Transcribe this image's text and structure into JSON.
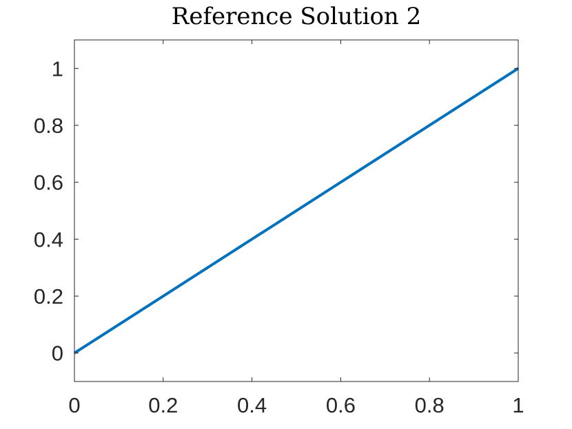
{
  "chart_data": {
    "type": "line",
    "title": "Reference Solution 2",
    "xlabel": "",
    "ylabel": "",
    "xlim": [
      0,
      1
    ],
    "ylim": [
      -0.1,
      1.1
    ],
    "xticks": [
      0,
      0.2,
      0.4,
      0.6,
      0.8,
      1
    ],
    "xtick_labels": [
      "0",
      "0.2",
      "0.4",
      "0.6",
      "0.8",
      "1"
    ],
    "yticks": [
      0,
      0.2,
      0.4,
      0.6,
      0.8,
      1
    ],
    "ytick_labels": [
      "0",
      "0.2",
      "0.4",
      "0.6",
      "0.8",
      "1"
    ],
    "grid": false,
    "series": [
      {
        "color": "#0072BD",
        "x": [
          0,
          1
        ],
        "y": [
          0,
          1
        ]
      }
    ]
  }
}
